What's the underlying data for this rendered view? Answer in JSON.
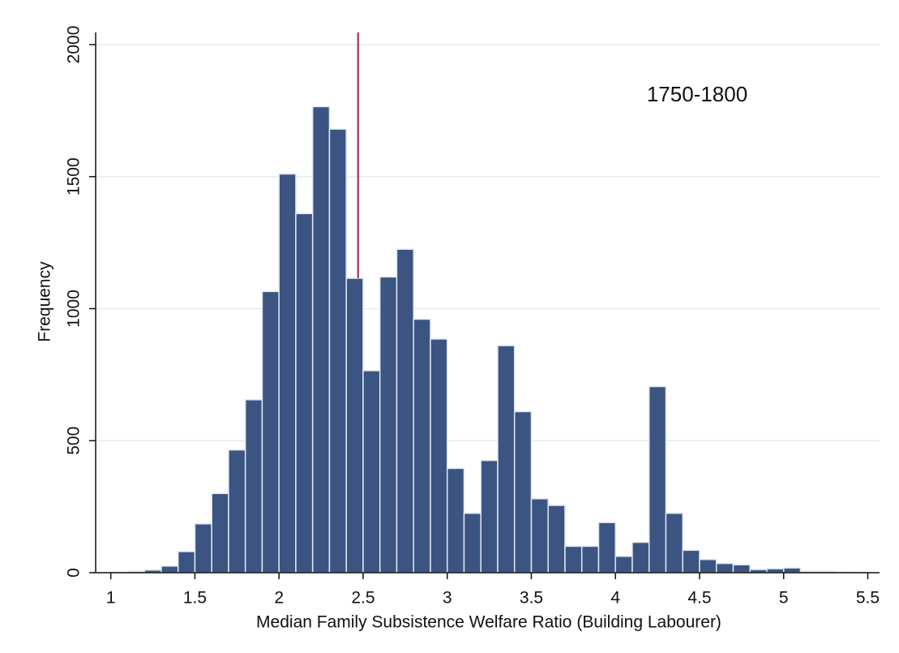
{
  "chart_data": {
    "type": "histogram",
    "annotation": "1750-1800",
    "xlabel": "Median Family Subsistence Welfare Ratio (Building Labourer)",
    "ylabel": "Frequency",
    "bins": [
      1.0,
      1.1,
      1.2,
      1.3,
      1.4,
      1.5,
      1.6,
      1.7,
      1.8,
      1.9,
      2.0,
      2.1,
      2.2,
      2.3,
      2.4,
      2.5,
      2.6,
      2.7,
      2.8,
      2.9,
      3.0,
      3.1,
      3.2,
      3.3,
      3.4,
      3.5,
      3.6,
      3.7,
      3.8,
      3.9,
      4.0,
      4.1,
      4.2,
      4.3,
      4.4,
      4.5,
      4.6,
      4.7,
      4.8,
      4.9,
      5.0,
      5.1,
      5.2,
      5.3,
      5.4,
      5.5
    ],
    "counts": [
      2,
      5,
      10,
      25,
      80,
      185,
      300,
      465,
      655,
      1065,
      1510,
      1360,
      1765,
      1680,
      1115,
      765,
      1120,
      1225,
      960,
      885,
      395,
      225,
      425,
      860,
      610,
      280,
      255,
      100,
      100,
      190,
      62,
      115,
      705,
      225,
      85,
      50,
      35,
      30,
      12,
      15,
      18,
      5,
      5,
      3,
      2
    ],
    "color": "#3b5481",
    "edge_color": "#dfe8f2",
    "median": 2.47,
    "median_color": "#a3203f",
    "xlim": [
      0.91,
      5.57
    ],
    "ylim": [
      0,
      2046
    ],
    "xticks": [
      1,
      1.5,
      2,
      2.5,
      3,
      3.5,
      4,
      4.5,
      5,
      5.5
    ],
    "yticks": [
      0,
      500,
      1000,
      1500,
      2000
    ],
    "grid": true
  }
}
